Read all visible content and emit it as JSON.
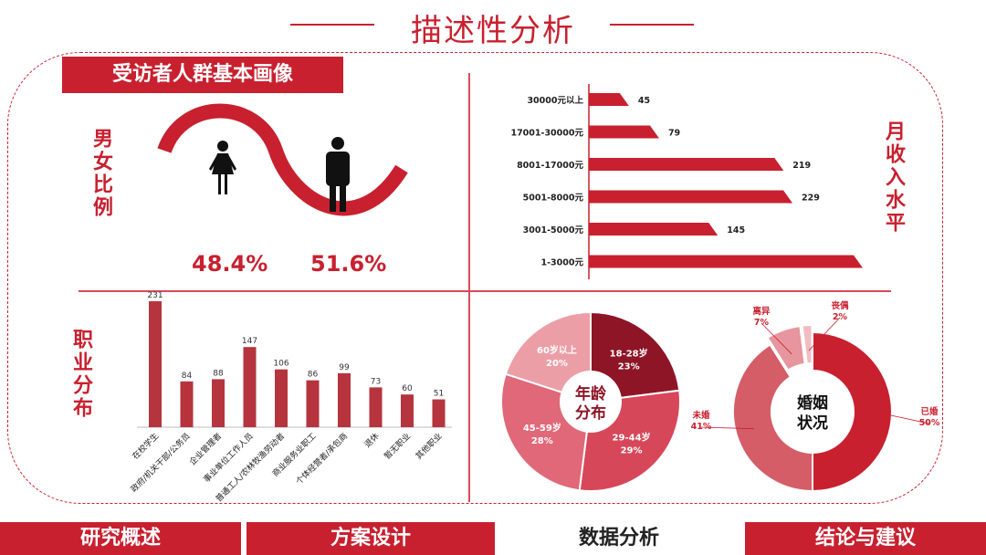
{
  "page_title": "描述性分析",
  "section_banner": "受访者人群基本画像",
  "gender": {
    "label": "男女比例",
    "female_pct": "48.4%",
    "male_pct": "51.6%",
    "colors": {
      "accent": "#c8202f"
    }
  },
  "income": {
    "label": "月收入水平"
  },
  "occupation": {
    "label": "职业分布"
  },
  "bottom_nav": [
    {
      "label": "研究概述",
      "active": true
    },
    {
      "label": "方案设计",
      "active": true
    },
    {
      "label": "数据分析",
      "active": false
    },
    {
      "label": "结论与建议",
      "active": true
    }
  ],
  "chart_data": [
    {
      "type": "bar",
      "orientation": "horizontal",
      "categories": [
        "30000元以上",
        "17001-30000元",
        "8001-17000元",
        "5001-8000元",
        "3001-5000元",
        "1-3000元"
      ],
      "values": [
        45,
        79,
        219,
        229,
        145,
        308
      ],
      "title": "月收入水平",
      "color": "#c8202f"
    },
    {
      "type": "bar",
      "categories": [
        "在校学生",
        "政府/机关干部/公务员",
        "企业管理者",
        "事业单位工作人员",
        "普通工人/农林牧渔劳动者",
        "商业服务业职工",
        "个体经营者/承包商",
        "退休",
        "暂无职业",
        "其他职业"
      ],
      "values": [
        231,
        84,
        88,
        147,
        106,
        86,
        99,
        73,
        60,
        51
      ],
      "title": "职业分布",
      "color": "#b5343e"
    },
    {
      "type": "pie",
      "title": "年龄分布",
      "slices": [
        {
          "label": "18-28岁",
          "pct": "23%",
          "value": 23,
          "color": "#8e1526"
        },
        {
          "label": "29-44岁",
          "pct": "29%",
          "value": 29,
          "color": "#d7475a"
        },
        {
          "label": "45-59岁",
          "pct": "28%",
          "value": 28,
          "color": "#e06878"
        },
        {
          "label": "60岁以上",
          "pct": "20%",
          "value": 20,
          "color": "#ec9ea7"
        }
      ]
    },
    {
      "type": "pie",
      "title": "婚姻状况",
      "slices": [
        {
          "label": "已婚",
          "pct": "50%",
          "value": 50,
          "color": "#c8202f"
        },
        {
          "label": "未婚",
          "pct": "41%",
          "value": 41,
          "color": "#d45d68"
        },
        {
          "label": "离异",
          "pct": "7%",
          "value": 7,
          "color": "#e7959e"
        },
        {
          "label": "丧偶",
          "pct": "2%",
          "value": 2,
          "color": "#f0bcc2"
        }
      ]
    }
  ]
}
